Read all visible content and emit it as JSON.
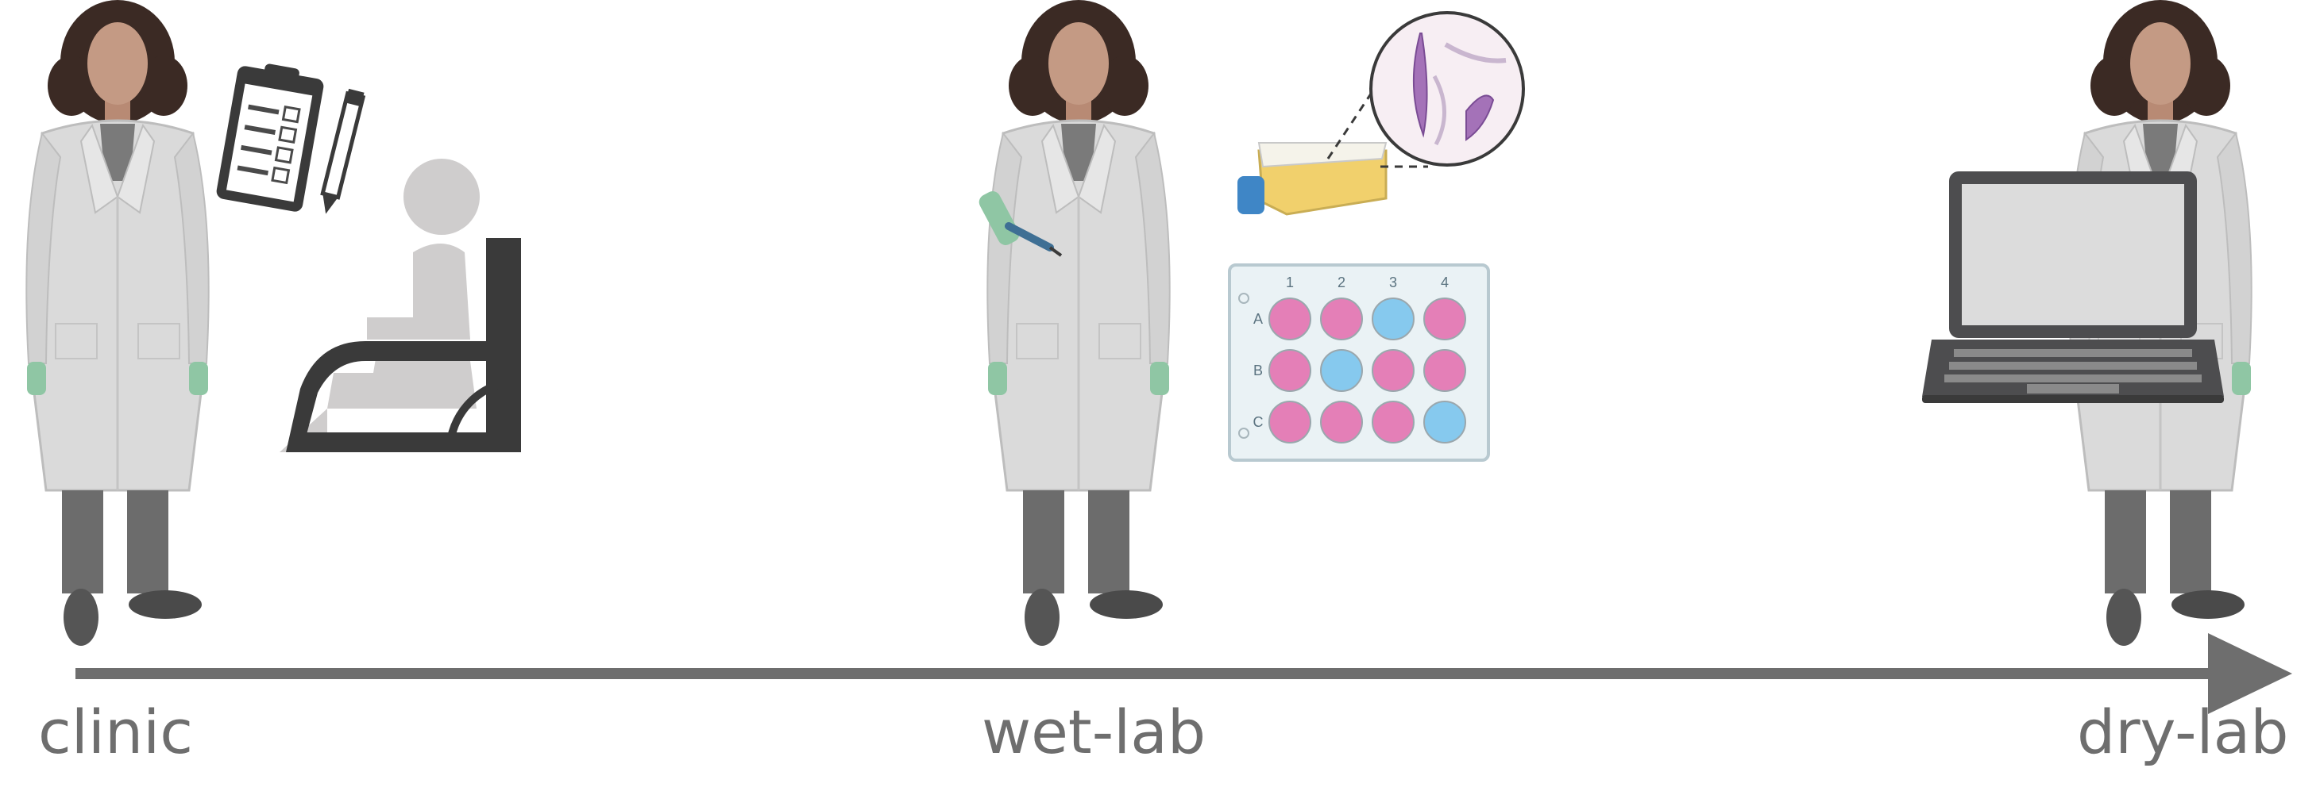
{
  "timeline": {
    "stages": [
      {
        "id": "clinic",
        "label": "clinic"
      },
      {
        "id": "wet-lab",
        "label": "wet-lab"
      },
      {
        "id": "dry-lab",
        "label": "dry-lab"
      }
    ]
  },
  "well_plate": {
    "columns": [
      "1",
      "2",
      "3",
      "4"
    ],
    "rows": [
      "A",
      "B",
      "C"
    ],
    "wells": [
      [
        "pink",
        "pink",
        "blue",
        "pink"
      ],
      [
        "pink",
        "blue",
        "pink",
        "pink"
      ],
      [
        "pink",
        "pink",
        "pink",
        "blue"
      ]
    ]
  },
  "colors": {
    "axis": "#6e6e6e",
    "coat": "#dadada",
    "skin": "#c49a84",
    "hair": "#3b2a24",
    "glove": "#8fc6a4",
    "pants": "#6c6c6c",
    "pink_well": "#e47fb7",
    "blue_well": "#86c9ee",
    "flask_liquid": "#f1d06c",
    "flask_cap": "#3f86c6",
    "patient": "#cfcdcd",
    "wheelchair": "#3a3a3a",
    "laptop": "#4d4d4f"
  },
  "icons": [
    "scientist-icon",
    "clipboard-icon",
    "pencil-icon",
    "wheelchair-patient-icon",
    "pipette-icon",
    "culture-flask-icon",
    "parasite-cells-icon",
    "well-plate-icon",
    "laptop-icon",
    "timeline-arrow-icon"
  ]
}
